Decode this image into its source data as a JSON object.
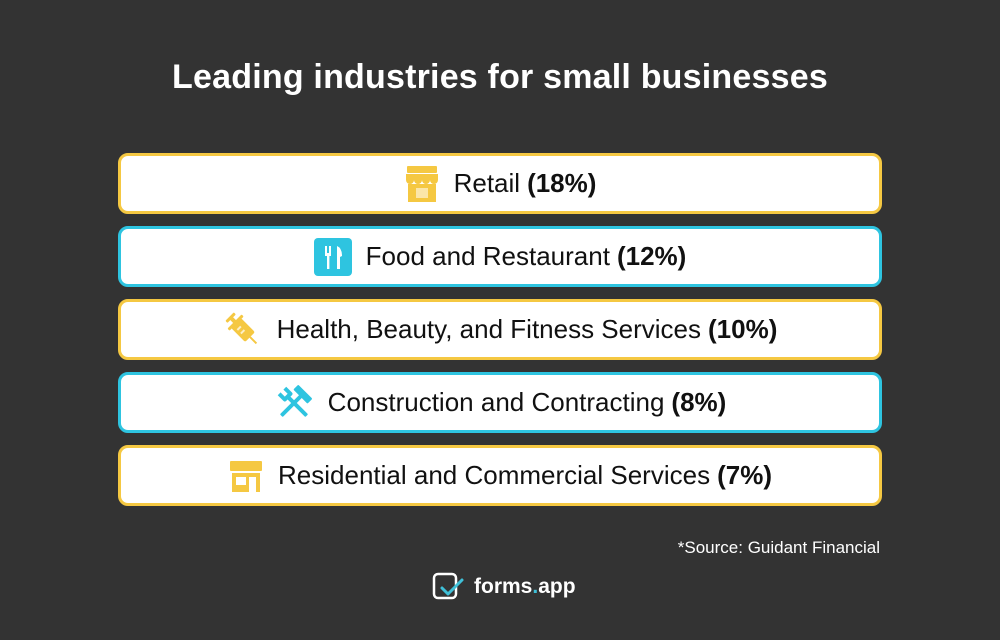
{
  "title": "Leading industries for small businesses",
  "colors": {
    "background": "#333333",
    "yellow": "#f5c842",
    "cyan": "#2ec4e0"
  },
  "items": [
    {
      "label": "Retail",
      "value": "(18%)",
      "icon": "storefront-icon",
      "border": "#f5c842"
    },
    {
      "label": "Food and Restaurant",
      "value": "(12%)",
      "icon": "fork-knife-icon",
      "border": "#2ec4e0"
    },
    {
      "label": "Health, Beauty, and Fitness Services",
      "value": "(10%)",
      "icon": "syringe-icon",
      "border": "#f5c842"
    },
    {
      "label": "Construction and Contracting",
      "value": "(8%)",
      "icon": "hammer-wrench-icon",
      "border": "#2ec4e0"
    },
    {
      "label": "Residential and Commercial Services",
      "value": "(7%)",
      "icon": "shop-icon",
      "border": "#f5c842"
    }
  ],
  "source": "*Source: Guidant Financial",
  "brand": {
    "name": "forms",
    "dot": ".",
    "suffix": "app"
  }
}
